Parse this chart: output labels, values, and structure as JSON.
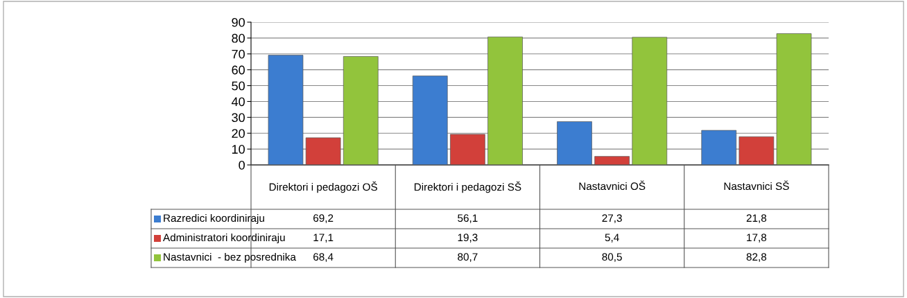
{
  "chart_data": {
    "type": "bar",
    "categories": [
      "Direktori i pedagozi OŠ",
      "Direktori i pedagozi SŠ",
      "Nastavnici OŠ",
      "Nastavnici SŠ"
    ],
    "series": [
      {
        "name": "Razredici koordiniraju",
        "color": "#3c7dd0",
        "values": [
          69.2,
          56.1,
          27.3,
          21.8
        ],
        "value_labels": [
          "69,2",
          "56,1",
          "27,3",
          "21,8"
        ]
      },
      {
        "name": "Administratori koordiniraju",
        "color": "#d2403a",
        "values": [
          17.1,
          19.3,
          5.4,
          17.8
        ],
        "value_labels": [
          "17,1",
          "19,3",
          "5,4",
          "17,8"
        ]
      },
      {
        "name": "Nastavnici  - bez posrednika",
        "color": "#92c43c",
        "values": [
          68.4,
          80.7,
          80.5,
          82.8
        ],
        "value_labels": [
          "68,4",
          "80,7",
          "80,5",
          "82,8"
        ]
      }
    ],
    "ylim": [
      0,
      90
    ],
    "yticks": [
      0,
      10,
      20,
      30,
      40,
      50,
      60,
      70,
      80,
      90
    ],
    "grid": "y",
    "legend": "bottom left"
  }
}
